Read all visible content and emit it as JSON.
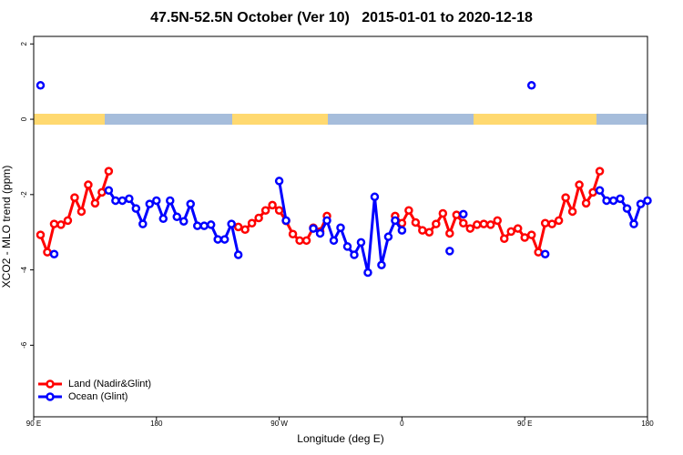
{
  "chart_data": {
    "type": "line",
    "title": "47.5N-52.5N October (Ver 10)   2015-01-01 to 2020-12-18",
    "x_label": "Longitude (deg E)",
    "y_label": "XCO2 - MLO trend (ppm)",
    "x": [
      95,
      100,
      105,
      110,
      115,
      120,
      125,
      130,
      135,
      140,
      145,
      150,
      155,
      160,
      165,
      170,
      175,
      180,
      185,
      190,
      195,
      200,
      205,
      210,
      215,
      220,
      225,
      230,
      235,
      240,
      245,
      250,
      255,
      260,
      265,
      270,
      275,
      280,
      285,
      290,
      295,
      300,
      305,
      310,
      315,
      320,
      325,
      330,
      335,
      340,
      345,
      350,
      355,
      360,
      365,
      370,
      375,
      380,
      385,
      390,
      395,
      400,
      405,
      410,
      415,
      420,
      425,
      430,
      435,
      440,
      445,
      450,
      455,
      460,
      465,
      470,
      475,
      480,
      485,
      490,
      495,
      500,
      505,
      510,
      515,
      520,
      525,
      530,
      535,
      540
    ],
    "series": [
      {
        "name": "Land (Nadir&Glint)",
        "color": "#ff0000",
        "values": [
          -3.07,
          -3.53,
          -2.78,
          -2.8,
          -2.69,
          -2.08,
          -2.45,
          -1.74,
          -2.23,
          -1.94,
          -1.38,
          null,
          null,
          null,
          null,
          null,
          null,
          null,
          null,
          null,
          null,
          null,
          null,
          null,
          null,
          null,
          null,
          null,
          null,
          -2.86,
          -2.93,
          -2.76,
          -2.62,
          -2.42,
          -2.28,
          -2.42,
          -2.7,
          -3.05,
          -3.22,
          -3.22,
          -2.88,
          -2.98,
          -2.57,
          null,
          null,
          null,
          null,
          null,
          null,
          null,
          null,
          null,
          -2.57,
          -2.76,
          -2.42,
          -2.74,
          -2.95,
          -3.0,
          -2.78,
          -2.5,
          -3.03,
          -2.54,
          -2.76,
          -2.9,
          -2.8,
          -2.78,
          -2.8,
          -2.69,
          -3.17,
          -2.98,
          -2.9,
          -3.14,
          -3.07,
          -3.53,
          -2.76,
          -2.78,
          -2.69,
          -2.08,
          -2.45,
          -1.74,
          -2.23,
          -1.94,
          -1.38,
          null,
          null,
          null,
          null,
          null,
          null,
          null
        ]
      },
      {
        "name": "Ocean (Glint)",
        "color": "#0000ff",
        "values": [
          0.9,
          null,
          -3.58,
          null,
          null,
          null,
          null,
          null,
          null,
          null,
          -1.89,
          -2.16,
          -2.16,
          -2.11,
          -2.37,
          -2.78,
          -2.25,
          -2.16,
          -2.64,
          -2.16,
          -2.59,
          -2.71,
          -2.25,
          -2.83,
          -2.83,
          -2.8,
          -3.19,
          -3.19,
          -2.78,
          -3.6,
          null,
          null,
          null,
          null,
          null,
          -1.64,
          -2.69,
          null,
          null,
          null,
          -2.9,
          -3.03,
          -2.69,
          -3.22,
          -2.88,
          -3.38,
          -3.6,
          -3.27,
          -4.07,
          -2.06,
          -3.87,
          -3.12,
          -2.69,
          -2.95,
          null,
          null,
          null,
          null,
          null,
          null,
          -3.5,
          null,
          -2.52,
          null,
          null,
          null,
          null,
          null,
          null,
          null,
          null,
          null,
          0.9,
          null,
          -3.58,
          null,
          null,
          null,
          null,
          null,
          null,
          null,
          -1.89,
          -2.16,
          -2.16,
          -2.11,
          -2.37,
          -2.78,
          -2.25,
          -2.16
        ]
      }
    ],
    "xlim": [
      90,
      540
    ],
    "xticks": [
      {
        "value": 90,
        "label": "90 E"
      },
      180,
      {
        "value": 270,
        "label": "90 W"
      },
      {
        "value": 360,
        "label": "0"
      },
      {
        "value": 450,
        "label": "90 E"
      },
      180
    ],
    "ylim": [
      -7.9,
      2.2
    ],
    "yticks": [
      2,
      0,
      -2,
      -4,
      -6
    ],
    "legend": "bottomleft"
  }
}
